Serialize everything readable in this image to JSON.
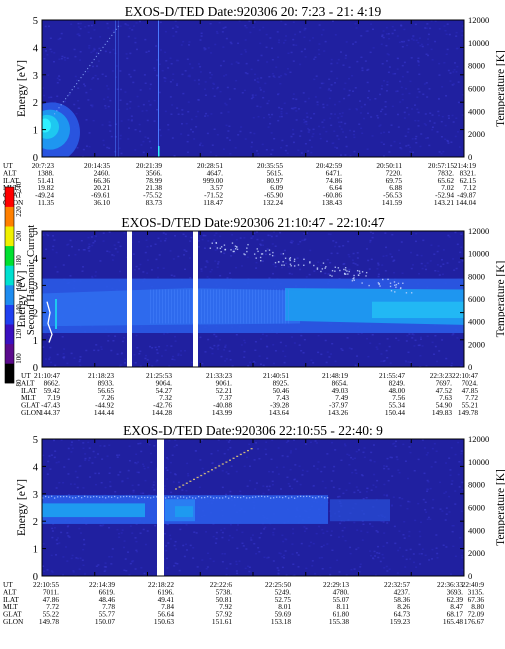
{
  "colors": {
    "background_low": "#2020a0",
    "band_mid": "#2a5ae6",
    "band_high": "#1e9af0",
    "enhancement_peak": "#30f0ff",
    "data_gap": "#ffffff"
  },
  "colorbar": {
    "label": "Second Harmonic Current",
    "ticks": [
      "80",
      "100",
      "120",
      "140",
      "160",
      "180",
      "200",
      "220",
      "240"
    ],
    "colors": [
      "#000000",
      "#5a0a8c",
      "#3a10c0",
      "#2040f0",
      "#1e8cf0",
      "#00e0d0",
      "#00e030",
      "#f0f000",
      "#ff8000",
      "#ff0000"
    ]
  },
  "chart_data": [
    {
      "type": "heatmap",
      "title": "EXOS-D/TED   Date:920306  20: 7:23 - 21: 4:19",
      "ylabel": "Energy [eV]",
      "ylabel_right": "Temperature [K]",
      "ylim": [
        0,
        5
      ],
      "ylim_right": [
        0,
        12000
      ],
      "y_ticks": [
        "0",
        "1",
        "2",
        "3",
        "4",
        "5"
      ],
      "y_right_ticks": [
        "0",
        "2000",
        "4000",
        "6000",
        "8000",
        "10000",
        "12000"
      ],
      "orbit_rows": [
        {
          "label": "UT",
          "values": [
            "20:7:23",
            "20:14:35",
            "20:21:39",
            "20:28:51",
            "20:35:55",
            "20:42:59",
            "20:50:11",
            "20:57:15",
            "21:4:19"
          ]
        },
        {
          "label": "ALT",
          "values": [
            "1388.",
            "2460.",
            "3566.",
            "4647.",
            "5615.",
            "6471.",
            "7220.",
            "7832.",
            "8321."
          ]
        },
        {
          "label": "ILAT",
          "values": [
            "51.41",
            "66.36",
            "78.99",
            "999.00",
            "80.97",
            "74.86",
            "69.75",
            "65.62",
            "62.15"
          ]
        },
        {
          "label": "MLT",
          "values": [
            "19.82",
            "20.21",
            "21.38",
            "3.57",
            "6.09",
            "6.64",
            "6.88",
            "7.02",
            "7.12"
          ]
        },
        {
          "label": "GLAT",
          "values": [
            "-49.24",
            "-69.61",
            "-75.52",
            "-71.52",
            "-65.90",
            "-60.86",
            "-56.53",
            "-52.94",
            "-49.87"
          ]
        },
        {
          "label": "GLON",
          "values": [
            "11.35",
            "36.10",
            "83.73",
            "118.47",
            "132.24",
            "138.43",
            "141.59",
            "143.21",
            "144.04"
          ]
        }
      ]
    },
    {
      "type": "heatmap",
      "title": "EXOS-D/TED   Date:920306  21:10:47 - 22:10:47",
      "ylabel": "Energy [eV]",
      "ylabel_right": "Temperature [K]",
      "ylim": [
        0,
        5
      ],
      "ylim_right": [
        0,
        12000
      ],
      "y_ticks": [
        "0",
        "1",
        "2",
        "3",
        "4",
        "5"
      ],
      "y_right_ticks": [
        "0",
        "2000",
        "4000",
        "6000",
        "8000",
        "10000",
        "12000"
      ],
      "orbit_rows": [
        {
          "label": "UT",
          "values": [
            "21:10:47",
            "21:18:23",
            "21:25:53",
            "21:33:23",
            "21:40:51",
            "21:48:19",
            "21:55:47",
            "22:3:23",
            "22:10:47"
          ]
        },
        {
          "label": "ALT",
          "values": [
            "8662.",
            "8933.",
            "9064.",
            "9061.",
            "8925.",
            "8654.",
            "8249.",
            "7697.",
            "7024."
          ]
        },
        {
          "label": "ILAT",
          "values": [
            "59.42",
            "56.65",
            "54.27",
            "52.21",
            "50.46",
            "49.03",
            "48.00",
            "47.52",
            "47.85"
          ]
        },
        {
          "label": "MLT",
          "values": [
            "7.19",
            "7.26",
            "7.32",
            "7.37",
            "7.43",
            "7.49",
            "7.56",
            "7.63",
            "7.72"
          ]
        },
        {
          "label": "GLAT",
          "values": [
            "-47.43",
            "-44.92",
            "-42.76",
            "-40.88",
            "-39.28",
            "-37.97",
            "55.34",
            "54.90",
            "55.21"
          ]
        },
        {
          "label": "GLON",
          "values": [
            "144.37",
            "144.44",
            "144.28",
            "143.99",
            "143.64",
            "143.26",
            "150.44",
            "149.83",
            "149.78"
          ]
        }
      ]
    },
    {
      "type": "heatmap",
      "title": "EXOS-D/TED   Date:920306  22:10:55 - 22:40: 9",
      "ylabel": "Energy [eV]",
      "ylabel_right": "Temperature [K]",
      "ylim": [
        0,
        5
      ],
      "ylim_right": [
        0,
        12000
      ],
      "y_ticks": [
        "0",
        "1",
        "2",
        "3",
        "4",
        "5"
      ],
      "y_right_ticks": [
        "0",
        "2000",
        "4000",
        "6000",
        "8000",
        "10000",
        "12000"
      ],
      "orbit_rows": [
        {
          "label": "UT",
          "values": [
            "22:10:55",
            "22:14:39",
            "22:18:22",
            "22:22:6",
            "22:25:50",
            "22:29:13",
            "22:32:57",
            "22:36:33",
            "22:40:9"
          ]
        },
        {
          "label": "ALT",
          "values": [
            "7011.",
            "6619.",
            "6196.",
            "5738.",
            "5249.",
            "4780.",
            "4237.",
            "3693.",
            "3135."
          ]
        },
        {
          "label": "ILAT",
          "values": [
            "47.86",
            "48.46",
            "49.41",
            "50.81",
            "52.75",
            "55.07",
            "58.36",
            "62.39",
            "67.36"
          ]
        },
        {
          "label": "MLT",
          "values": [
            "7.72",
            "7.78",
            "7.84",
            "7.92",
            "8.01",
            "8.11",
            "8.26",
            "8.47",
            "8.80"
          ]
        },
        {
          "label": "GLAT",
          "values": [
            "55.22",
            "55.77",
            "56.64",
            "57.92",
            "59.69",
            "61.80",
            "64.73",
            "68.17",
            "72.09"
          ]
        },
        {
          "label": "GLON",
          "values": [
            "149.78",
            "150.07",
            "150.63",
            "151.61",
            "153.18",
            "155.38",
            "159.23",
            "165.48",
            "176.67"
          ]
        }
      ]
    }
  ]
}
